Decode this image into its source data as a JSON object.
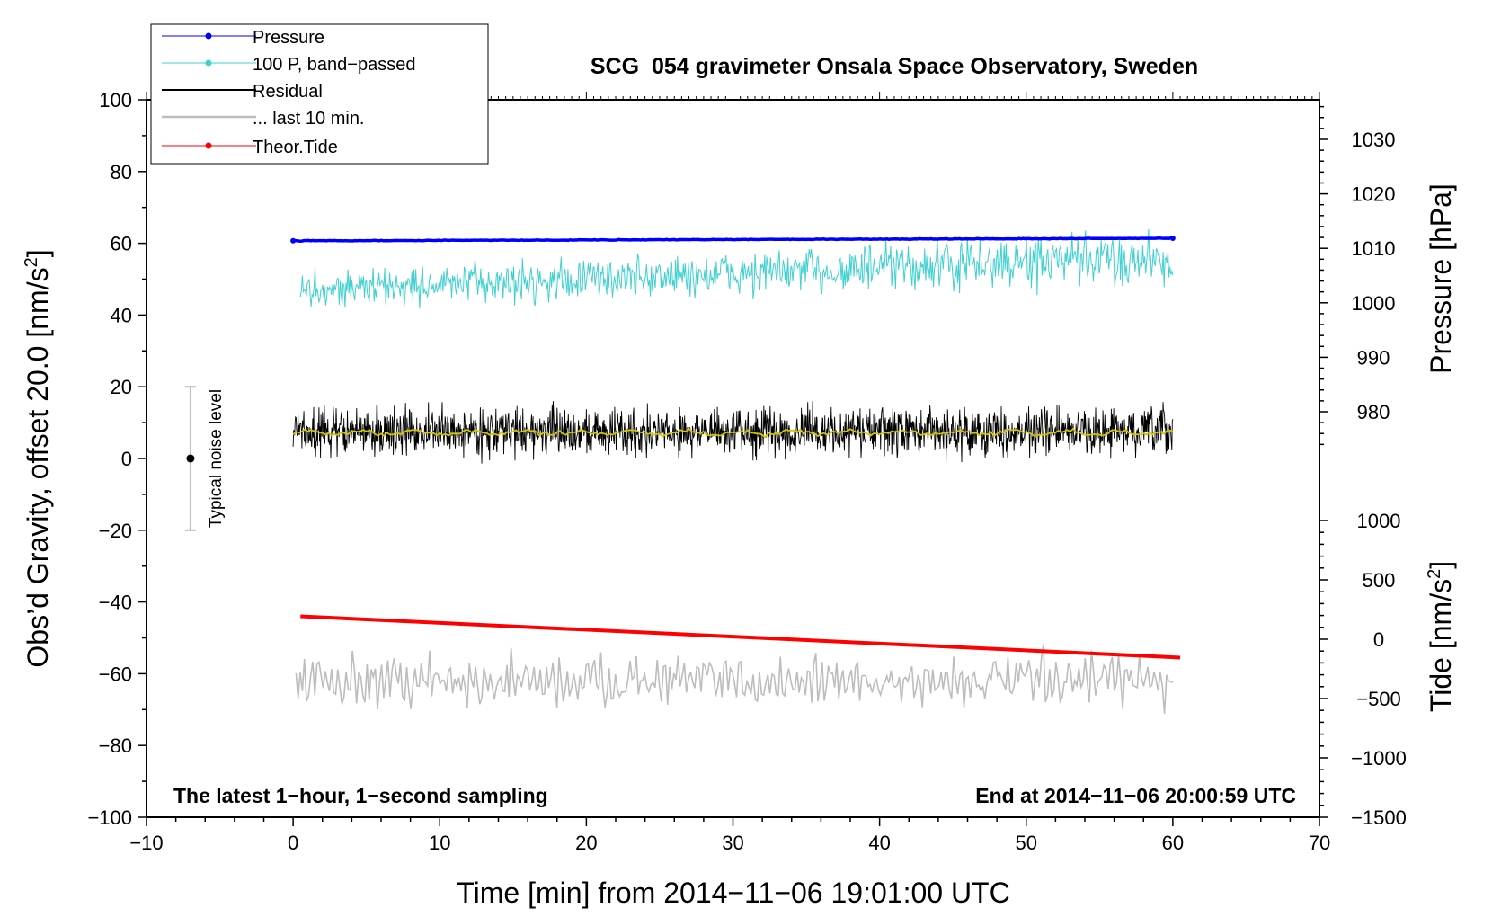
{
  "chart_data": {
    "type": "line",
    "title": "SCG_054 gravimeter Onsala Space Observatory, Sweden",
    "xlabel": "Time [min] from 2014−11−06 19:01:00 UTC",
    "ylabel_left_main": "Obs’d Gravity, offset 20.0 [nm/s",
    "ylabel_left_sup": "2",
    "ylabel_left_end": "]",
    "ylabel_right_top": "Pressure [hPa]",
    "ylabel_right_bottom_main": "Tide [nm/s",
    "ylabel_right_bottom_sup": "2",
    "ylabel_right_bottom_end": "]",
    "xlim": [
      -10,
      70
    ],
    "ylim": [
      -100,
      100
    ],
    "pressure_axis_range": [
      974,
      1036
    ],
    "tide_axis_range": [
      -1500,
      1000
    ],
    "x_ticks": [
      "−10",
      "0",
      "10",
      "20",
      "30",
      "40",
      "50",
      "60",
      "70"
    ],
    "x_tick_values": [
      -10,
      0,
      10,
      20,
      30,
      40,
      50,
      60,
      70
    ],
    "y_ticks": [
      "100",
      "80",
      "60",
      "40",
      "20",
      "0",
      "−20",
      "−40",
      "−60",
      "−80",
      "−100"
    ],
    "y_tick_values": [
      100,
      80,
      60,
      40,
      20,
      0,
      -20,
      -40,
      -60,
      -80,
      -100
    ],
    "pressure_ticks": [
      "1030",
      "1020",
      "1010",
      "1000",
      "990",
      "980"
    ],
    "pressure_tick_values": [
      1030,
      1020,
      1010,
      1000,
      990,
      980
    ],
    "tide_ticks": [
      "1000",
      "500",
      "0",
      "−500",
      "−1000",
      "−1500"
    ],
    "tide_tick_values": [
      1000,
      500,
      0,
      -500,
      -1000,
      -1500
    ],
    "legend": [
      "Pressure",
      "100 P, band−passed",
      "Residual",
      "... last 10 min.",
      "Theor.Tide"
    ],
    "legend_position": "top-left",
    "annotation_left": "The latest 1−hour, 1−second sampling",
    "annotation_right": "End at 2014−11−06 20:00:59 UTC",
    "noise_label": "Typical noise level",
    "noise_bar": {
      "x": -7,
      "center": 0,
      "low": -20,
      "high": 20
    },
    "colors": {
      "pressure": "#0000ff",
      "bandpassed": "#40d0d0",
      "residual": "#000000",
      "residual_smooth": "#d4c400",
      "last10": "#bdbdbd",
      "tide": "#ff0000"
    },
    "series": [
      {
        "name": "Pressure",
        "x_range": [
          0,
          60
        ],
        "start": 60.7,
        "end": 61.4,
        "noise": 0.2
      },
      {
        "name": "100 P, band−passed",
        "x_range": [
          0.5,
          60
        ],
        "start": 47,
        "end": 56,
        "noise": 3.5
      },
      {
        "name": "Residual",
        "x_range": [
          0,
          60
        ],
        "center": 7.5,
        "noise": 4.5
      },
      {
        "name": "... last 10 min.",
        "x_range": [
          0.2,
          60
        ],
        "center": -62,
        "noise": 4
      },
      {
        "name": "Theor.Tide",
        "x_range": [
          0.5,
          60.5
        ],
        "start": -44,
        "end": -55.5
      }
    ]
  }
}
